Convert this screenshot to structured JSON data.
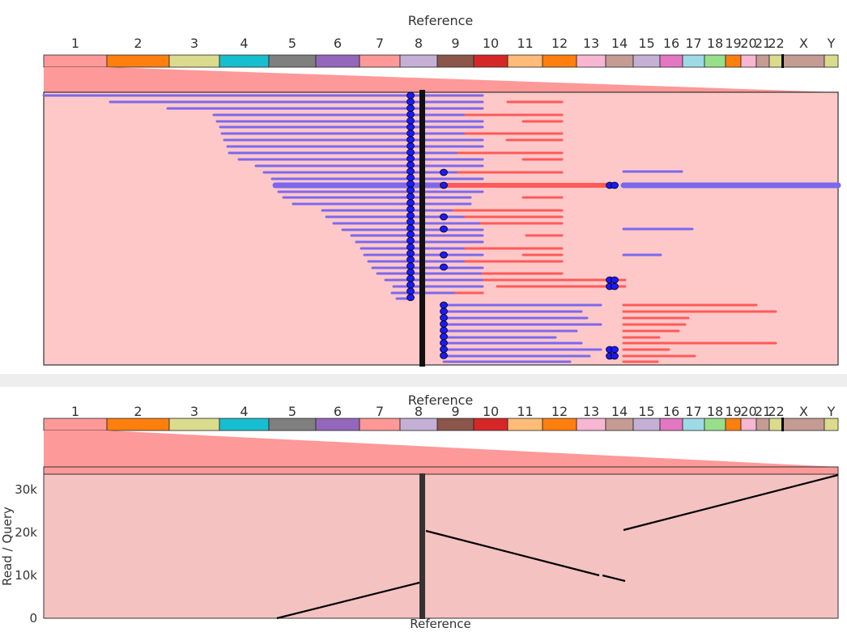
{
  "top_panel": {
    "title": "Reference",
    "chromosomes": [
      {
        "name": "1",
        "color": "#fe9999"
      },
      {
        "name": "2",
        "color": "#ff7f0e"
      },
      {
        "name": "3",
        "color": "#dbdb8d"
      },
      {
        "name": "4",
        "color": "#17becf"
      },
      {
        "name": "5",
        "color": "#7f7f7f"
      },
      {
        "name": "6",
        "color": "#9467bd"
      },
      {
        "name": "7",
        "color": "#ff9896"
      },
      {
        "name": "8",
        "color": "#c5b0d5"
      },
      {
        "name": "9",
        "color": "#8c564b"
      },
      {
        "name": "10",
        "color": "#d62728"
      },
      {
        "name": "11",
        "color": "#ffbb78"
      },
      {
        "name": "12",
        "color": "#ff7f0e"
      },
      {
        "name": "13",
        "color": "#f7b6d2"
      },
      {
        "name": "14",
        "color": "#c49c94"
      },
      {
        "name": "15",
        "color": "#c5b0d5"
      },
      {
        "name": "16",
        "color": "#e377c2"
      },
      {
        "name": "17",
        "color": "#9edae5"
      },
      {
        "name": "18",
        "color": "#98df8a"
      },
      {
        "name": "19",
        "color": "#ff7f0e"
      },
      {
        "name": "20",
        "color": "#f7b6d2"
      },
      {
        "name": "21",
        "color": "#c49c94"
      },
      {
        "name": "22",
        "color": "#dbdb8d"
      },
      {
        "name": "X",
        "color": "#c49c94"
      },
      {
        "name": "Y",
        "color": "#dbdb8d"
      }
    ]
  },
  "bottom_panel": {
    "title": "Reference",
    "x_axis_label": "Reference",
    "y_axis_label": "Read / Query",
    "y_ticks": [
      "0",
      "10k",
      "20k",
      "30k"
    ]
  },
  "colors": {
    "zoom_band": "#fe9999",
    "zoom_panel_bg": "#ffc8c8",
    "dot_zoom_bg": "#f5c2c2",
    "forward_read": "#7b68ee",
    "reverse_read": "#ff5a5a",
    "breakpoint_dot": "#1a1aff"
  }
}
